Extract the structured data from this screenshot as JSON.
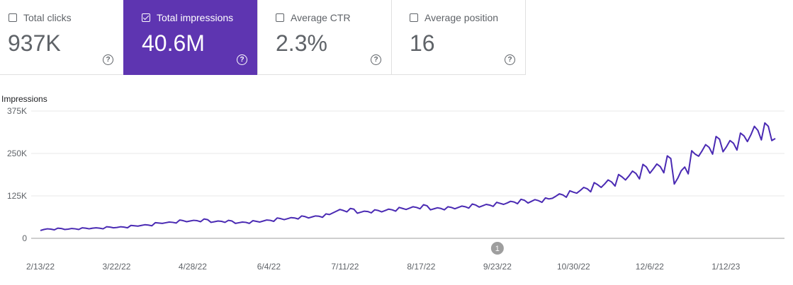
{
  "metrics": [
    {
      "label": "Total clicks",
      "value": "937K",
      "selected": false,
      "help": "?"
    },
    {
      "label": "Total impressions",
      "value": "40.6M",
      "selected": true,
      "help": "?"
    },
    {
      "label": "Average CTR",
      "value": "2.3%",
      "selected": false,
      "help": "?"
    },
    {
      "label": "Average position",
      "value": "16",
      "selected": false,
      "help": "?"
    }
  ],
  "colors": {
    "accent": "#5e35b1",
    "line": "#4a2ab3"
  },
  "chart_data": {
    "type": "line",
    "ylabel": "Impressions",
    "y_ticks": [
      "375K",
      "250K",
      "125K",
      "0"
    ],
    "y_tick_values": [
      375000,
      250000,
      125000,
      0
    ],
    "ylim": [
      0,
      375000
    ],
    "x_tick_labels": [
      "2/13/22",
      "3/22/22",
      "4/28/22",
      "6/4/22",
      "7/11/22",
      "8/17/22",
      "9/23/22",
      "10/30/22",
      "12/6/22",
      "1/12/23"
    ],
    "x_range": [
      "2/13/22",
      "2/5/23"
    ],
    "annotation": {
      "label": "1",
      "date": "9/23/22"
    },
    "series": [
      {
        "values": [
          23000,
          26000,
          28000,
          27000,
          25000,
          30000,
          29000,
          26000,
          27000,
          29000,
          28000,
          26000,
          31000,
          30000,
          28000,
          30000,
          31000,
          30000,
          28000,
          34000,
          33000,
          31000,
          32000,
          34000,
          33000,
          31000,
          38000,
          37000,
          36000,
          38000,
          40000,
          39000,
          37000,
          46000,
          45000,
          44000,
          46000,
          48000,
          47000,
          45000,
          54000,
          52000,
          49000,
          51000,
          53000,
          52000,
          49000,
          57000,
          55000,
          47000,
          49000,
          51000,
          50000,
          47000,
          53000,
          51000,
          44000,
          46000,
          48000,
          47000,
          44000,
          52000,
          50000,
          48000,
          51000,
          54000,
          53000,
          50000,
          60000,
          58000,
          55000,
          58000,
          61000,
          60000,
          57000,
          66000,
          64000,
          60000,
          63000,
          66000,
          65000,
          62000,
          72000,
          70000,
          75000,
          80000,
          85000,
          82000,
          78000,
          88000,
          86000,
          74000,
          77000,
          80000,
          79000,
          75000,
          84000,
          82000,
          78000,
          82000,
          86000,
          84000,
          80000,
          91000,
          88000,
          85000,
          89000,
          93000,
          91000,
          87000,
          99000,
          96000,
          84000,
          87000,
          90000,
          88000,
          84000,
          93000,
          91000,
          87000,
          91000,
          95000,
          93000,
          89000,
          101000,
          98000,
          92000,
          96000,
          100000,
          98000,
          94000,
          106000,
          103000,
          100000,
          104000,
          109000,
          107000,
          102000,
          115000,
          112000,
          104000,
          109000,
          114000,
          111000,
          106000,
          119000,
          116000,
          118000,
          124000,
          131000,
          128000,
          121000,
          140000,
          136000,
          133000,
          141000,
          150000,
          146000,
          137000,
          164000,
          158000,
          150000,
          160000,
          172000,
          166000,
          154000,
          188000,
          181000,
          172000,
          184000,
          198000,
          191000,
          175000,
          218000,
          210000,
          192000,
          205000,
          219000,
          211000,
          193000,
          243000,
          235000,
          160000,
          177000,
          199000,
          210000,
          190000,
          258000,
          248000,
          242000,
          258000,
          276000,
          268000,
          248000,
          300000,
          292000,
          255000,
          270000,
          288000,
          280000,
          260000,
          310000,
          302000,
          285000,
          305000,
          330000,
          318000,
          290000,
          340000,
          330000,
          288000,
          294000
        ]
      }
    ]
  }
}
